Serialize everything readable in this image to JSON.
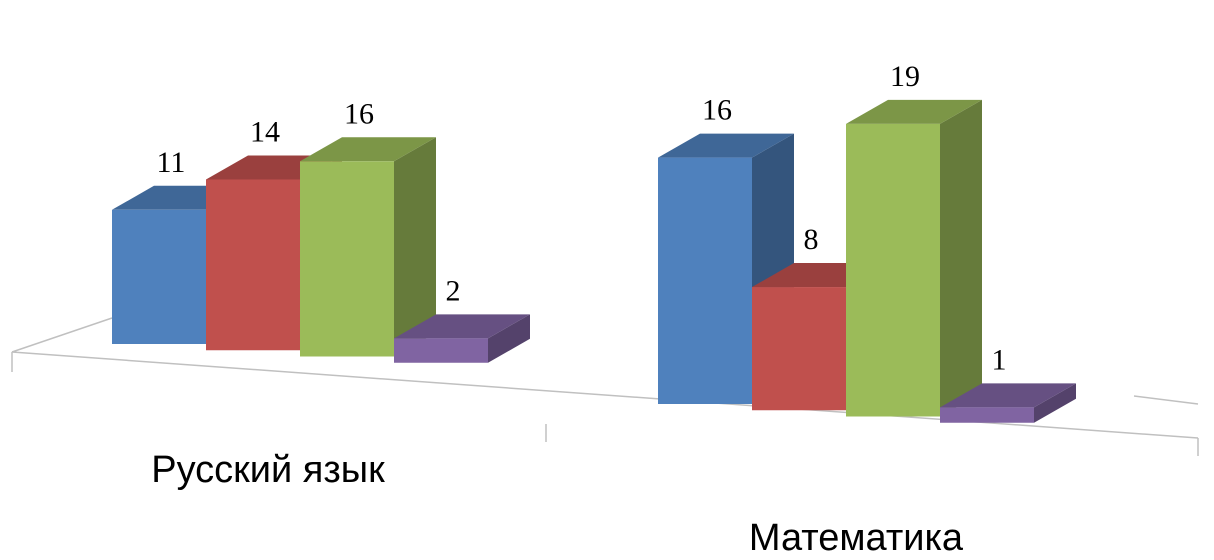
{
  "chart_data": {
    "type": "bar",
    "style": "3d-clustered-column",
    "categories": [
      "Русский язык",
      "Математика"
    ],
    "series": [
      {
        "values": [
          11,
          16
        ],
        "color": "#4f81bd"
      },
      {
        "values": [
          14,
          8
        ],
        "color": "#c0504d"
      },
      {
        "values": [
          16,
          19
        ],
        "color": "#9bbb59"
      },
      {
        "values": [
          2,
          1
        ],
        "color": "#8064a2"
      }
    ],
    "data_labels": true,
    "legend": "none",
    "grid": false
  }
}
